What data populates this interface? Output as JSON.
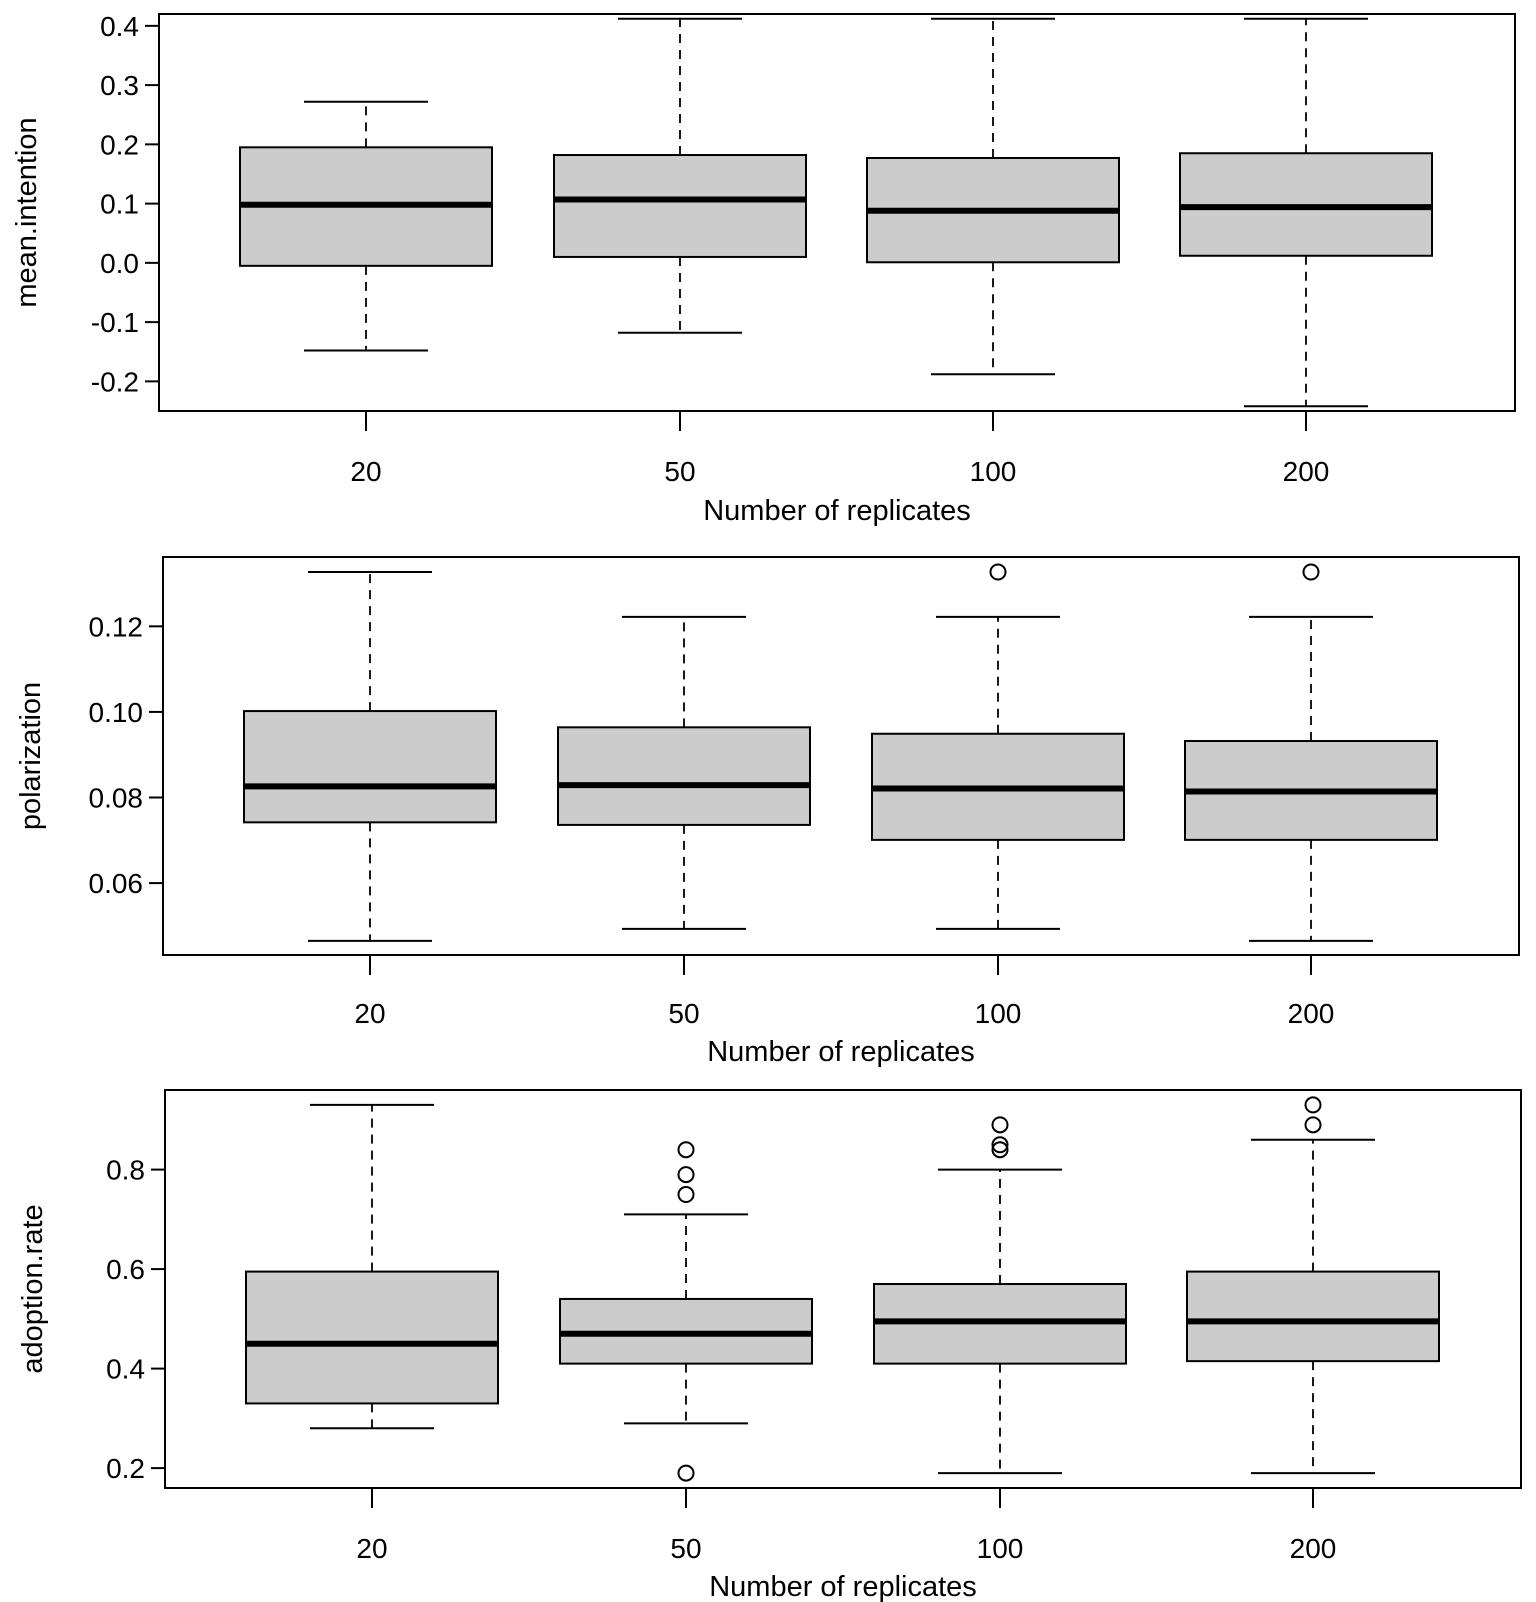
{
  "chart_data": [
    {
      "type": "boxplot",
      "ylabel": "mean.intention",
      "xlabel": "Number of replicates",
      "categories": [
        "20",
        "50",
        "100",
        "200"
      ],
      "ylim": [
        -0.25,
        0.42
      ],
      "yticks": [
        {
          "v": -0.2,
          "label": "-0.2"
        },
        {
          "v": -0.1,
          "label": "-0.1"
        },
        {
          "v": 0.0,
          "label": "0.0"
        },
        {
          "v": 0.1,
          "label": "0.1"
        },
        {
          "v": 0.2,
          "label": "0.2"
        },
        {
          "v": 0.3,
          "label": "0.3"
        },
        {
          "v": 0.4,
          "label": "0.4"
        }
      ],
      "boxes": [
        {
          "min": -0.148,
          "q1": -0.005,
          "median": 0.098,
          "q3": 0.195,
          "max": 0.272,
          "outliers": []
        },
        {
          "min": -0.118,
          "q1": 0.01,
          "median": 0.107,
          "q3": 0.182,
          "max": 0.412,
          "outliers": []
        },
        {
          "min": -0.188,
          "q1": 0.001,
          "median": 0.088,
          "q3": 0.177,
          "max": 0.412,
          "outliers": []
        },
        {
          "min": -0.242,
          "q1": 0.012,
          "median": 0.094,
          "q3": 0.185,
          "max": 0.412,
          "outliers": []
        }
      ]
    },
    {
      "type": "boxplot",
      "ylabel": "polarization",
      "xlabel": "Number of replicates",
      "categories": [
        "20",
        "50",
        "100",
        "200"
      ],
      "ylim": [
        0.0432,
        0.1362
      ],
      "yticks": [
        {
          "v": 0.06,
          "label": "0.06"
        },
        {
          "v": 0.08,
          "label": "0.08"
        },
        {
          "v": 0.1,
          "label": "0.10"
        },
        {
          "v": 0.12,
          "label": "0.12"
        }
      ],
      "boxes": [
        {
          "min": 0.0465,
          "q1": 0.0742,
          "median": 0.0826,
          "q3": 0.1002,
          "max": 0.1327,
          "outliers": []
        },
        {
          "min": 0.0493,
          "q1": 0.0736,
          "median": 0.0829,
          "q3": 0.0964,
          "max": 0.1222,
          "outliers": []
        },
        {
          "min": 0.0493,
          "q1": 0.0701,
          "median": 0.0821,
          "q3": 0.0949,
          "max": 0.1222,
          "outliers": [
            0.1327
          ]
        },
        {
          "min": 0.0465,
          "q1": 0.0701,
          "median": 0.0814,
          "q3": 0.0932,
          "max": 0.1222,
          "outliers": [
            0.1327
          ]
        }
      ]
    },
    {
      "type": "boxplot",
      "ylabel": "adoption.rate",
      "xlabel": "Number of replicates",
      "categories": [
        "20",
        "50",
        "100",
        "200"
      ],
      "ylim": [
        0.16,
        0.96
      ],
      "yticks": [
        {
          "v": 0.2,
          "label": "0.2"
        },
        {
          "v": 0.4,
          "label": "0.4"
        },
        {
          "v": 0.6,
          "label": "0.6"
        },
        {
          "v": 0.8,
          "label": "0.8"
        }
      ],
      "boxes": [
        {
          "min": 0.28,
          "q1": 0.33,
          "median": 0.45,
          "q3": 0.595,
          "max": 0.93,
          "outliers": []
        },
        {
          "min": 0.29,
          "q1": 0.41,
          "median": 0.47,
          "q3": 0.54,
          "max": 0.71,
          "outliers": [
            0.84,
            0.79,
            0.75,
            0.19
          ]
        },
        {
          "min": 0.19,
          "q1": 0.41,
          "median": 0.495,
          "q3": 0.57,
          "max": 0.8,
          "outliers": [
            0.89,
            0.85,
            0.84
          ]
        },
        {
          "min": 0.19,
          "q1": 0.415,
          "median": 0.495,
          "q3": 0.595,
          "max": 0.86,
          "outliers": [
            0.93,
            0.89
          ]
        }
      ]
    }
  ]
}
